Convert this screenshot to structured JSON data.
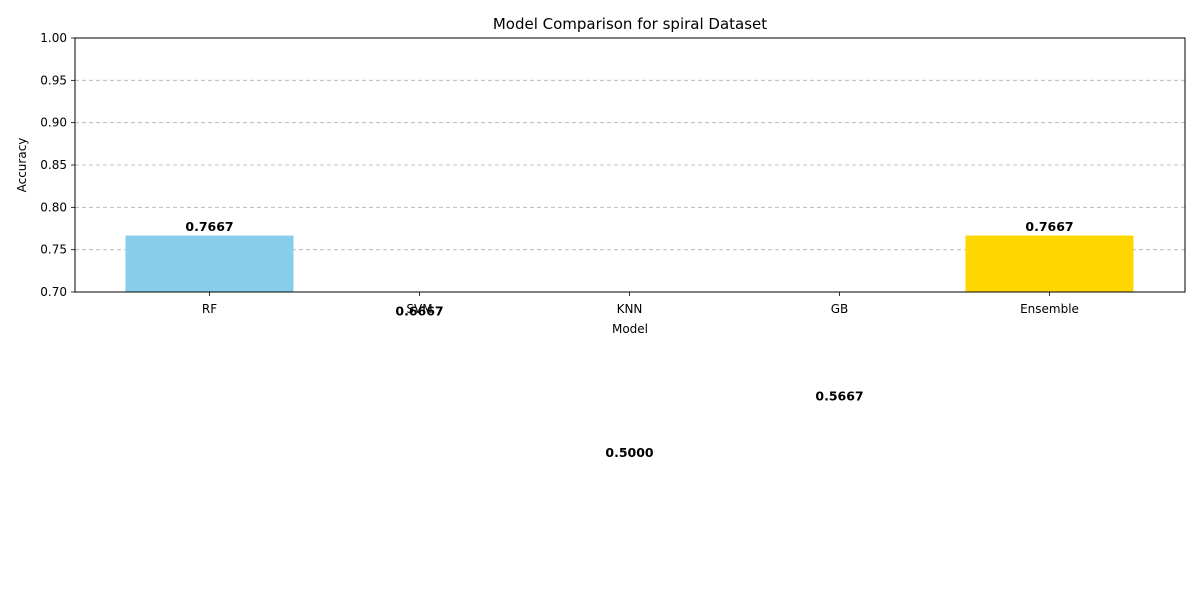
{
  "chart_data": {
    "type": "bar",
    "title": "Model Comparison for spiral Dataset",
    "xlabel": "Model",
    "ylabel": "Accuracy",
    "categories": [
      "RF",
      "SVM",
      "KNN",
      "GB",
      "Ensemble"
    ],
    "values": [
      0.7667,
      0.6667,
      0.5,
      0.5667,
      0.7667
    ],
    "value_labels": [
      "0.7667",
      "0.6667",
      "0.5000",
      "0.5667",
      "0.7667"
    ],
    "colors": [
      "#87ceeb",
      "#90ee90",
      "#f08080",
      "#dda0dd",
      "#ffd700"
    ],
    "ylim": [
      0.7,
      1.0
    ],
    "yticks": [
      0.7,
      0.75,
      0.8,
      0.85,
      0.9,
      0.95,
      1.0
    ],
    "ytick_labels": [
      "0.70",
      "0.75",
      "0.80",
      "0.85",
      "0.90",
      "0.95",
      "1.00"
    ],
    "grid": "y-dashed",
    "legend": "none"
  }
}
